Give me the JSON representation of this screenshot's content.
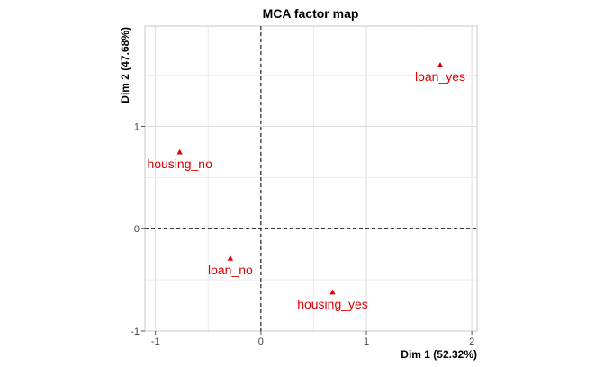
{
  "chart_data": {
    "type": "scatter",
    "title": "MCA factor map",
    "xlabel": "Dim 1 (52.32%)",
    "ylabel": "Dim 2 (47.68%)",
    "xlim": [
      -1.1,
      2.05
    ],
    "ylim": [
      -1.0,
      1.98
    ],
    "x_ticks": [
      -1,
      0,
      1,
      2
    ],
    "y_ticks": [
      -1,
      0,
      1
    ],
    "grid": true,
    "reference_lines": {
      "x": 0,
      "y": 0,
      "style": "dashed"
    },
    "point_color": "#e00000",
    "marker": "triangle",
    "points": [
      {
        "label": "loan_yes",
        "x": 1.7,
        "y": 1.6
      },
      {
        "label": "housing_no",
        "x": -0.77,
        "y": 0.75
      },
      {
        "label": "loan_no",
        "x": -0.29,
        "y": -0.29
      },
      {
        "label": "housing_yes",
        "x": 0.68,
        "y": -0.62
      }
    ]
  }
}
